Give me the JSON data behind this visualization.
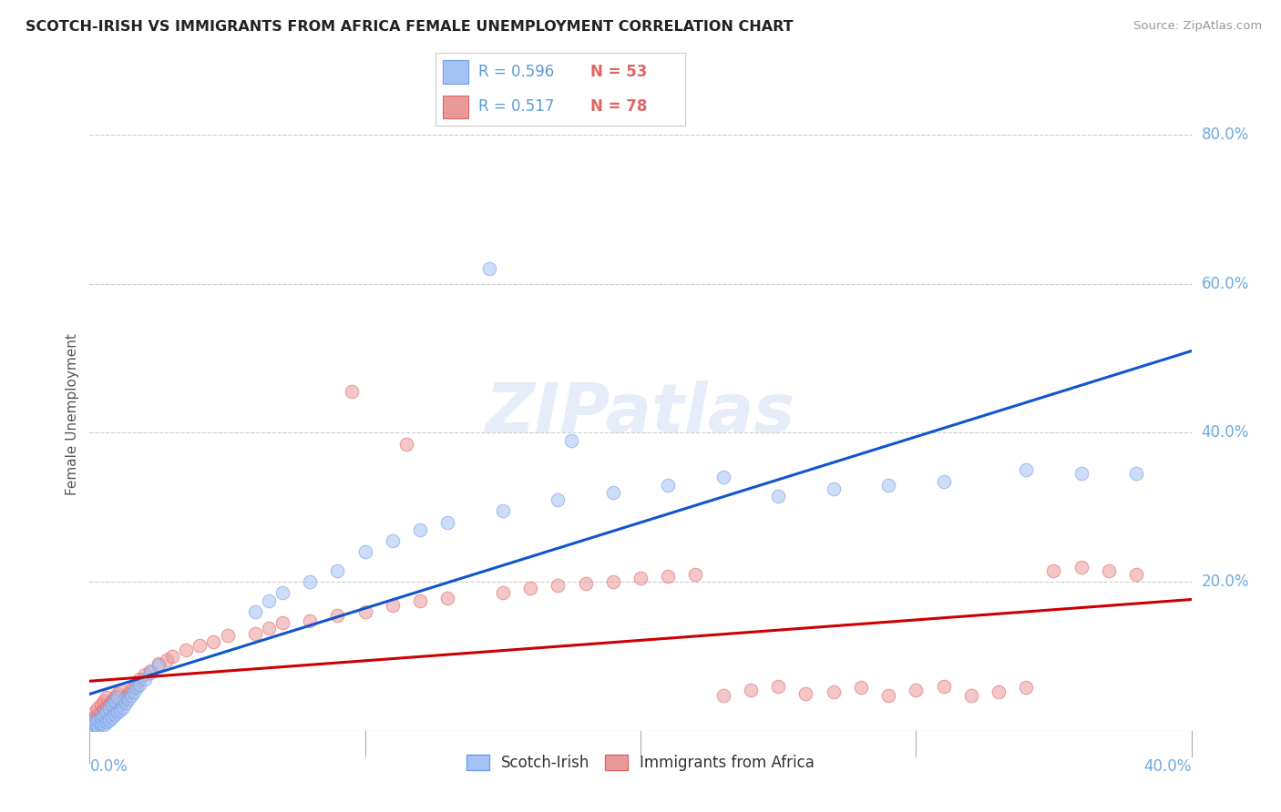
{
  "title": "SCOTCH-IRISH VS IMMIGRANTS FROM AFRICA FEMALE UNEMPLOYMENT CORRELATION CHART",
  "source": "Source: ZipAtlas.com",
  "ylabel": "Female Unemployment",
  "x_label_bottom_left": "0.0%",
  "x_label_bottom_right": "40.0%",
  "xlim": [
    0,
    0.4
  ],
  "ylim": [
    0,
    0.85
  ],
  "ytick_labels": [
    "20.0%",
    "40.0%",
    "60.0%",
    "80.0%"
  ],
  "ytick_vals": [
    0.2,
    0.4,
    0.6,
    0.8
  ],
  "legend_r1": "R = 0.596",
  "legend_n1": "N = 53",
  "legend_r2": "R = 0.517",
  "legend_n2": "N = 78",
  "scotch_irish_color": "#a4c2f4",
  "scotch_irish_edge": "#6d9eeb",
  "africa_color": "#ea9999",
  "africa_edge": "#e06666",
  "trendline_scotch_color": "#1155cc",
  "trendline_africa_color": "#cc0000",
  "watermark": "ZIPatlas",
  "background_color": "#ffffff",
  "scotch_irish_points": [
    [
      0.001,
      0.005
    ],
    [
      0.002,
      0.008
    ],
    [
      0.002,
      0.012
    ],
    [
      0.003,
      0.006
    ],
    [
      0.003,
      0.015
    ],
    [
      0.004,
      0.01
    ],
    [
      0.004,
      0.018
    ],
    [
      0.005,
      0.008
    ],
    [
      0.005,
      0.02
    ],
    [
      0.006,
      0.012
    ],
    [
      0.006,
      0.025
    ],
    [
      0.007,
      0.015
    ],
    [
      0.007,
      0.03
    ],
    [
      0.008,
      0.018
    ],
    [
      0.008,
      0.035
    ],
    [
      0.009,
      0.022
    ],
    [
      0.009,
      0.04
    ],
    [
      0.01,
      0.025
    ],
    [
      0.01,
      0.045
    ],
    [
      0.011,
      0.028
    ],
    [
      0.012,
      0.032
    ],
    [
      0.013,
      0.038
    ],
    [
      0.014,
      0.042
    ],
    [
      0.015,
      0.048
    ],
    [
      0.016,
      0.052
    ],
    [
      0.017,
      0.058
    ],
    [
      0.018,
      0.062
    ],
    [
      0.02,
      0.07
    ],
    [
      0.022,
      0.078
    ],
    [
      0.025,
      0.088
    ],
    [
      0.06,
      0.16
    ],
    [
      0.065,
      0.175
    ],
    [
      0.07,
      0.185
    ],
    [
      0.08,
      0.2
    ],
    [
      0.09,
      0.215
    ],
    [
      0.1,
      0.24
    ],
    [
      0.11,
      0.255
    ],
    [
      0.12,
      0.27
    ],
    [
      0.13,
      0.28
    ],
    [
      0.15,
      0.295
    ],
    [
      0.17,
      0.31
    ],
    [
      0.19,
      0.32
    ],
    [
      0.21,
      0.33
    ],
    [
      0.23,
      0.34
    ],
    [
      0.25,
      0.315
    ],
    [
      0.27,
      0.325
    ],
    [
      0.29,
      0.33
    ],
    [
      0.31,
      0.335
    ],
    [
      0.145,
      0.62
    ],
    [
      0.175,
      0.39
    ],
    [
      0.34,
      0.35
    ],
    [
      0.36,
      0.345
    ],
    [
      0.38,
      0.345
    ]
  ],
  "africa_points": [
    [
      0.001,
      0.005
    ],
    [
      0.001,
      0.015
    ],
    [
      0.002,
      0.008
    ],
    [
      0.002,
      0.018
    ],
    [
      0.002,
      0.025
    ],
    [
      0.003,
      0.01
    ],
    [
      0.003,
      0.022
    ],
    [
      0.003,
      0.03
    ],
    [
      0.004,
      0.012
    ],
    [
      0.004,
      0.025
    ],
    [
      0.004,
      0.035
    ],
    [
      0.005,
      0.015
    ],
    [
      0.005,
      0.028
    ],
    [
      0.005,
      0.04
    ],
    [
      0.006,
      0.018
    ],
    [
      0.006,
      0.032
    ],
    [
      0.006,
      0.045
    ],
    [
      0.007,
      0.02
    ],
    [
      0.007,
      0.035
    ],
    [
      0.008,
      0.025
    ],
    [
      0.008,
      0.04
    ],
    [
      0.009,
      0.028
    ],
    [
      0.009,
      0.045
    ],
    [
      0.01,
      0.03
    ],
    [
      0.01,
      0.05
    ],
    [
      0.011,
      0.035
    ],
    [
      0.011,
      0.055
    ],
    [
      0.012,
      0.04
    ],
    [
      0.013,
      0.045
    ],
    [
      0.014,
      0.05
    ],
    [
      0.015,
      0.055
    ],
    [
      0.016,
      0.06
    ],
    [
      0.017,
      0.065
    ],
    [
      0.018,
      0.07
    ],
    [
      0.02,
      0.075
    ],
    [
      0.022,
      0.08
    ],
    [
      0.025,
      0.09
    ],
    [
      0.028,
      0.095
    ],
    [
      0.03,
      0.1
    ],
    [
      0.035,
      0.108
    ],
    [
      0.04,
      0.115
    ],
    [
      0.045,
      0.12
    ],
    [
      0.05,
      0.128
    ],
    [
      0.06,
      0.13
    ],
    [
      0.065,
      0.138
    ],
    [
      0.07,
      0.145
    ],
    [
      0.08,
      0.148
    ],
    [
      0.09,
      0.155
    ],
    [
      0.1,
      0.16
    ],
    [
      0.11,
      0.168
    ],
    [
      0.12,
      0.175
    ],
    [
      0.13,
      0.178
    ],
    [
      0.15,
      0.185
    ],
    [
      0.16,
      0.192
    ],
    [
      0.17,
      0.195
    ],
    [
      0.18,
      0.198
    ],
    [
      0.19,
      0.2
    ],
    [
      0.2,
      0.205
    ],
    [
      0.21,
      0.208
    ],
    [
      0.22,
      0.21
    ],
    [
      0.23,
      0.048
    ],
    [
      0.24,
      0.055
    ],
    [
      0.25,
      0.06
    ],
    [
      0.26,
      0.05
    ],
    [
      0.27,
      0.052
    ],
    [
      0.28,
      0.058
    ],
    [
      0.29,
      0.048
    ],
    [
      0.3,
      0.055
    ],
    [
      0.31,
      0.06
    ],
    [
      0.32,
      0.048
    ],
    [
      0.33,
      0.052
    ],
    [
      0.34,
      0.058
    ],
    [
      0.095,
      0.455
    ],
    [
      0.115,
      0.385
    ],
    [
      0.35,
      0.215
    ],
    [
      0.36,
      0.22
    ],
    [
      0.37,
      0.215
    ],
    [
      0.38,
      0.21
    ]
  ]
}
